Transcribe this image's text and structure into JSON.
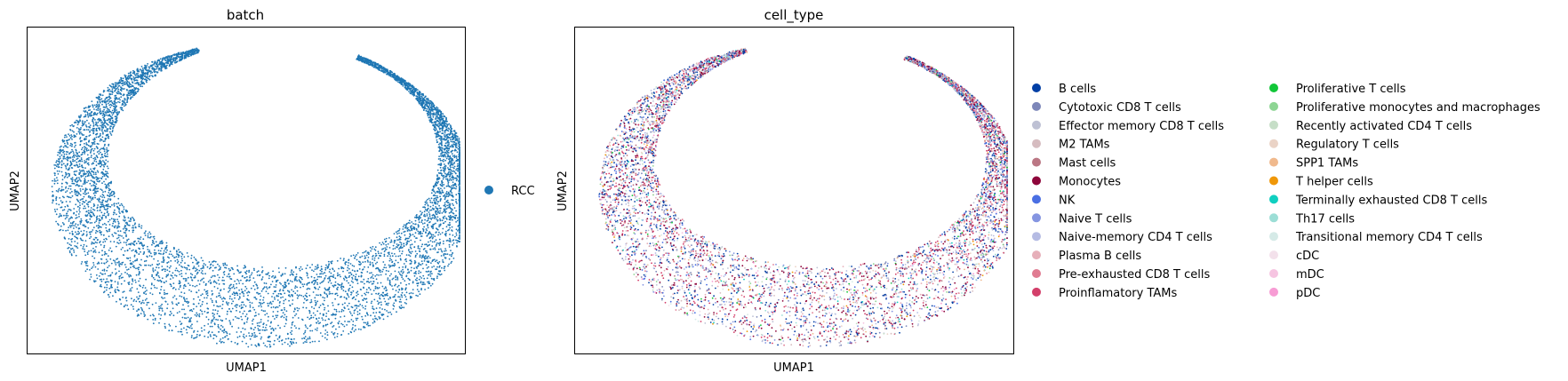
{
  "chart_data": [
    {
      "type": "scatter",
      "title": "batch",
      "xlabel": "UMAP1",
      "ylabel": "UMAP2",
      "grid": false,
      "legend_placement": "right",
      "series": [
        {
          "name": "RCC",
          "color": "#1f77b4"
        }
      ]
    },
    {
      "type": "scatter",
      "title": "cell_type",
      "xlabel": "UMAP1",
      "ylabel": "UMAP2",
      "grid": false,
      "legend_placement": "right",
      "series": [
        {
          "name": "B cells",
          "color": "#023fa5"
        },
        {
          "name": "Cytotoxic CD8 T cells",
          "color": "#7d87b9"
        },
        {
          "name": "Effector memory CD8 T cells",
          "color": "#bec1d4"
        },
        {
          "name": "M2 TAMs",
          "color": "#d6bcc0"
        },
        {
          "name": "Mast cells",
          "color": "#bb7784"
        },
        {
          "name": "Monocytes",
          "color": "#8e063b"
        },
        {
          "name": "NK",
          "color": "#4a6fe3"
        },
        {
          "name": "Naive T cells",
          "color": "#8595e1"
        },
        {
          "name": "Naive-memory CD4 T cells",
          "color": "#b5bbe3"
        },
        {
          "name": "Plasma B cells",
          "color": "#e6afb9"
        },
        {
          "name": "Pre-exhausted CD8 T cells",
          "color": "#e07b91"
        },
        {
          "name": "Proinflamatory TAMs",
          "color": "#d33f6a"
        },
        {
          "name": "Proliferative T cells",
          "color": "#11c638"
        },
        {
          "name": "Proliferative monocytes and macrophages",
          "color": "#8dd593"
        },
        {
          "name": "Recently activated CD4 T cells",
          "color": "#c6dec7"
        },
        {
          "name": "Regulatory T cells",
          "color": "#ead3c6"
        },
        {
          "name": "SPP1 TAMs",
          "color": "#f0b98d"
        },
        {
          "name": "T helper cells",
          "color": "#ef9708"
        },
        {
          "name": "Terminally exhausted CD8 T cells",
          "color": "#0fcfc0"
        },
        {
          "name": "Th17 cells",
          "color": "#9cded6"
        },
        {
          "name": "Transitional memory CD4 T cells",
          "color": "#d5eae7"
        },
        {
          "name": "cDC",
          "color": "#f3e1eb"
        },
        {
          "name": "mDC",
          "color": "#f6c4e1"
        },
        {
          "name": "pDC",
          "color": "#f79cd4"
        }
      ]
    }
  ]
}
